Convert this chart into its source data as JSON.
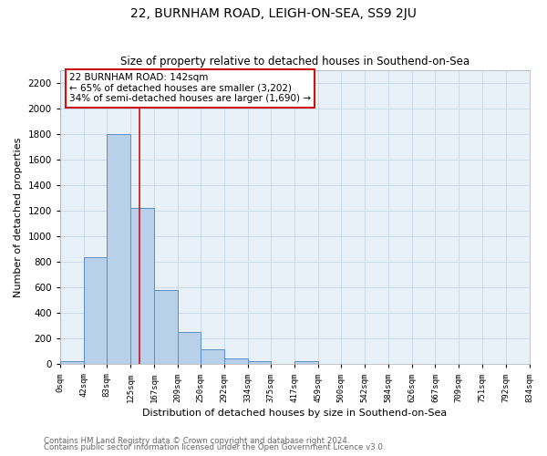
{
  "title1": "22, BURNHAM ROAD, LEIGH-ON-SEA, SS9 2JU",
  "title2": "Size of property relative to detached houses in Southend-on-Sea",
  "xlabel": "Distribution of detached houses by size in Southend-on-Sea",
  "ylabel": "Number of detached properties",
  "bar_color": "#b8d0ea",
  "bar_edge_color": "#5b8fc9",
  "grid_color": "#c5d8ec",
  "bg_color": "#e8f0f8",
  "fig_color": "#ffffff",
  "annotation_box_color": "#ffffff",
  "annotation_border_color": "#cc1111",
  "red_line_color": "#cc1111",
  "annotation_line1": "22 BURNHAM ROAD: 142sqm",
  "annotation_line2": "← 65% of detached houses are smaller (3,202)",
  "annotation_line3": "34% of semi-detached houses are larger (1,690) →",
  "bin_edges": [
    0,
    42,
    83,
    125,
    167,
    209,
    250,
    292,
    334,
    375,
    417,
    459,
    500,
    542,
    584,
    626,
    667,
    709,
    751,
    792,
    834
  ],
  "bin_labels": [
    "0sqm",
    "42sqm",
    "83sqm",
    "125sqm",
    "167sqm",
    "209sqm",
    "250sqm",
    "292sqm",
    "334sqm",
    "375sqm",
    "417sqm",
    "459sqm",
    "500sqm",
    "542sqm",
    "584sqm",
    "626sqm",
    "667sqm",
    "709sqm",
    "751sqm",
    "792sqm",
    "834sqm"
  ],
  "bar_heights": [
    25,
    840,
    1800,
    1220,
    580,
    255,
    115,
    45,
    25,
    0,
    25,
    0,
    0,
    0,
    0,
    0,
    0,
    0,
    0,
    0
  ],
  "red_line_x": 142,
  "ylim": [
    0,
    2300
  ],
  "yticks": [
    0,
    200,
    400,
    600,
    800,
    1000,
    1200,
    1400,
    1600,
    1800,
    2000,
    2200
  ],
  "footer1": "Contains HM Land Registry data © Crown copyright and database right 2024.",
  "footer2": "Contains public sector information licensed under the Open Government Licence v3.0."
}
